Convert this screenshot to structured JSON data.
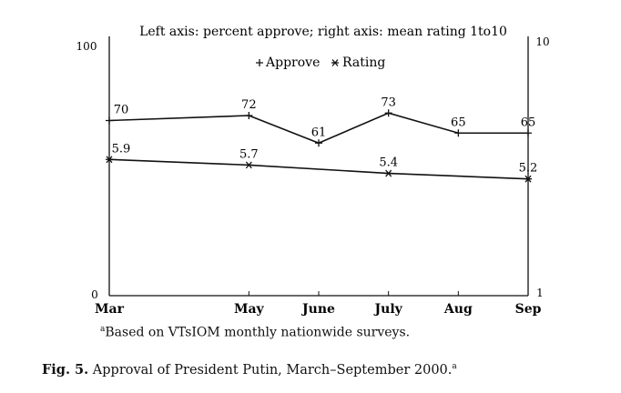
{
  "chart_data": {
    "type": "line",
    "title": "Left axis: percent approve; right axis: mean rating 1to10",
    "categories": [
      "Mar",
      "May",
      "June",
      "July",
      "Aug",
      "Sep"
    ],
    "x_positions_months": [
      3,
      5,
      6,
      7,
      8,
      9
    ],
    "left_axis": {
      "label": "percent approve",
      "range": [
        0,
        100
      ],
      "tick_labels": [
        "0",
        "100"
      ]
    },
    "right_axis": {
      "label": "mean rating",
      "range": [
        1,
        10
      ],
      "tick_labels": [
        "1",
        "10"
      ]
    },
    "series": [
      {
        "name": "Approve",
        "marker": "plus",
        "axis": "left",
        "values": [
          70,
          72,
          61,
          73,
          65,
          65
        ],
        "data_labels": [
          "70",
          "72",
          "61",
          "73",
          "65",
          "65"
        ]
      },
      {
        "name": "Rating",
        "marker": "star",
        "axis": "right",
        "values": [
          5.9,
          5.7,
          null,
          5.4,
          null,
          5.2
        ],
        "data_labels": [
          "5.9",
          "5.7",
          "",
          "5.4",
          "",
          "5.2"
        ]
      }
    ],
    "legend_position": "top-center",
    "grid": false
  },
  "footnote": {
    "marker": "a",
    "text": "Based on VTsIOM monthly nationwide surveys."
  },
  "caption": {
    "label": "Fig. 5.",
    "text": "Approval of President Putin, March–September 2000.",
    "marker": "a"
  }
}
